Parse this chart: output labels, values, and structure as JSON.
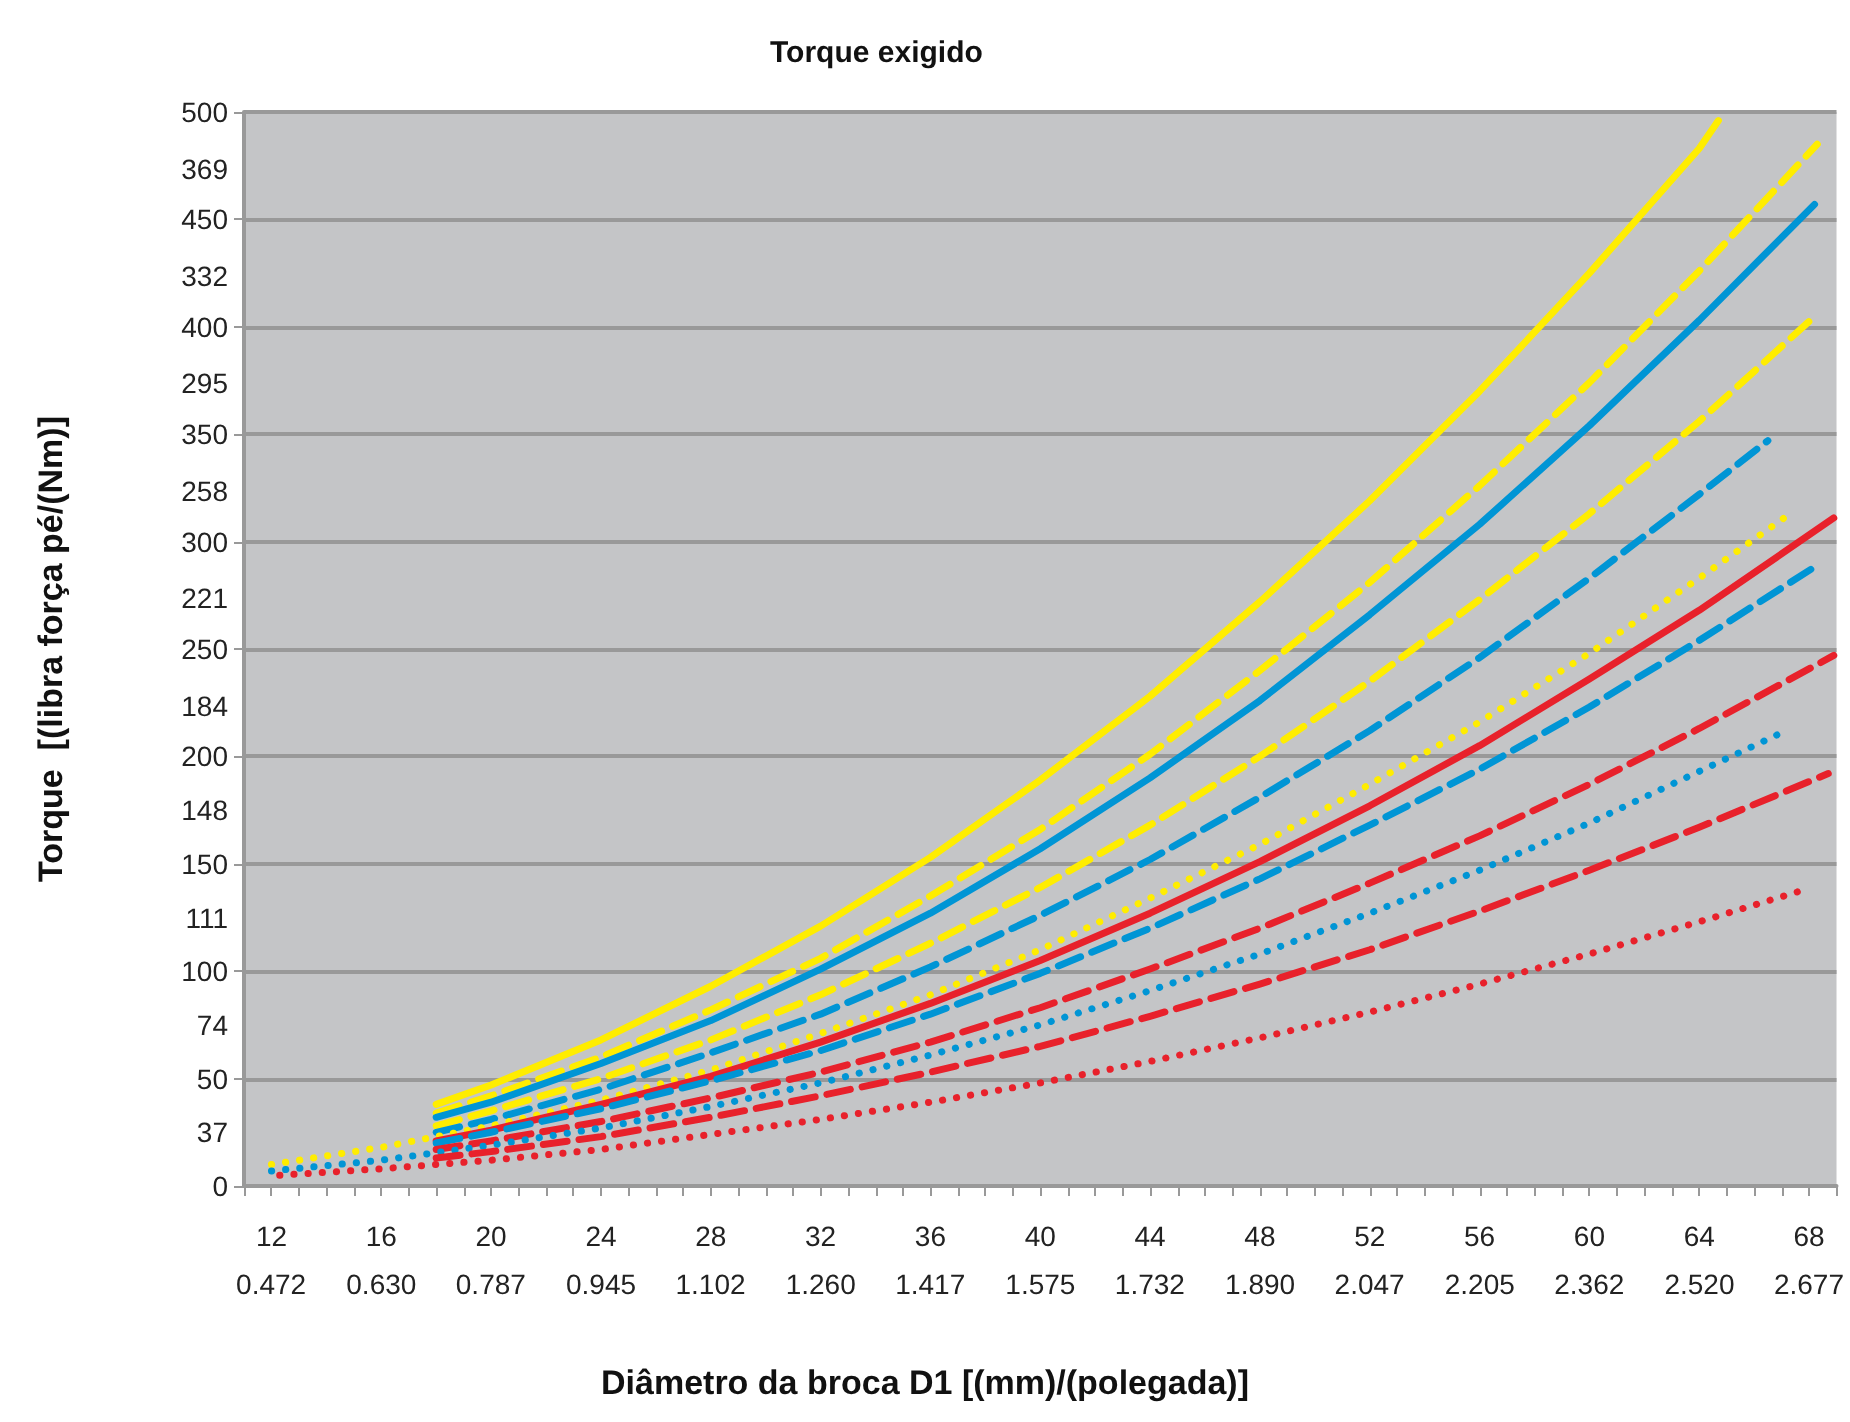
{
  "chart_data": {
    "type": "line",
    "title": "Torque exigido",
    "xlabel": "Diâmetro da broca D1 [(mm)/(polegada)]",
    "y2label": "Torque  [(libra força pé/(Nm)]",
    "xlim": [
      11,
      69
    ],
    "xticks": [
      {
        "value": 11,
        "label": null
      },
      {
        "value": 12,
        "label": "12"
      },
      {
        "value": 13,
        "label": null
      },
      {
        "value": 14,
        "label": null
      },
      {
        "value": 15,
        "label": null
      },
      {
        "value": 16,
        "label": "16"
      },
      {
        "value": 17,
        "label": null
      },
      {
        "value": 18,
        "label": null
      },
      {
        "value": 19,
        "label": null
      },
      {
        "value": 20,
        "label": "20"
      },
      {
        "value": 21,
        "label": null
      },
      {
        "value": 22,
        "label": null
      },
      {
        "value": 23,
        "label": null
      },
      {
        "value": 24,
        "label": "24"
      },
      {
        "value": 25,
        "label": null
      },
      {
        "value": 26,
        "label": null
      },
      {
        "value": 27,
        "label": null
      },
      {
        "value": 28,
        "label": "28"
      },
      {
        "value": 29,
        "label": null
      },
      {
        "value": 30,
        "label": null
      },
      {
        "value": 31,
        "label": null
      },
      {
        "value": 32,
        "label": "32"
      },
      {
        "value": 33,
        "label": null
      },
      {
        "value": 34,
        "label": null
      },
      {
        "value": 35,
        "label": null
      },
      {
        "value": 36,
        "label": "36"
      },
      {
        "value": 37,
        "label": null
      },
      {
        "value": 38,
        "label": null
      },
      {
        "value": 39,
        "label": null
      },
      {
        "value": 40,
        "label": "40"
      },
      {
        "value": 41,
        "label": null
      },
      {
        "value": 42,
        "label": null
      },
      {
        "value": 43,
        "label": null
      },
      {
        "value": 44,
        "label": "44"
      },
      {
        "value": 45,
        "label": null
      },
      {
        "value": 46,
        "label": null
      },
      {
        "value": 47,
        "label": null
      },
      {
        "value": 48,
        "label": "48"
      },
      {
        "value": 49,
        "label": null
      },
      {
        "value": 50,
        "label": null
      },
      {
        "value": 51,
        "label": null
      },
      {
        "value": 52,
        "label": "52"
      },
      {
        "value": 53,
        "label": null
      },
      {
        "value": 54,
        "label": null
      },
      {
        "value": 55,
        "label": null
      },
      {
        "value": 56,
        "label": "56"
      },
      {
        "value": 57,
        "label": null
      },
      {
        "value": 58,
        "label": null
      },
      {
        "value": 59,
        "label": null
      },
      {
        "value": 60,
        "label": "60"
      },
      {
        "value": 61,
        "label": null
      },
      {
        "value": 62,
        "label": null
      },
      {
        "value": 63,
        "label": null
      },
      {
        "value": 64,
        "label": "64"
      },
      {
        "value": 65,
        "label": null
      },
      {
        "value": 66,
        "label": null
      },
      {
        "value": 67,
        "label": null
      },
      {
        "value": 68,
        "label": "68"
      },
      {
        "value": 69,
        "label": null
      }
    ],
    "x2lim": [
      0.4331,
      2.7165
    ],
    "x2ticks": [
      0.472,
      {
        "value": 0.63,
        "label": "0.630"
      },
      0.787,
      0.945,
      1.102,
      {
        "value": 1.26,
        "label": "1.260"
      },
      1.417,
      1.575,
      1.732,
      {
        "value": 1.89,
        "label": "1.890"
      },
      2.047,
      2.205,
      2.362,
      {
        "value": 2.52,
        "label": "2.520"
      },
      2.677
    ],
    "ylim": [
      0,
      500
    ],
    "yticks": [
      0,
      50,
      100,
      150,
      200,
      250,
      300,
      350,
      400,
      450,
      500
    ],
    "y2lim": [
      18.5,
      388.5
    ],
    "y2ticks": [
      37,
      74,
      111,
      148,
      184,
      221,
      258,
      295,
      332,
      369
    ],
    "grid": "y",
    "marker": "none",
    "series": [
      {
        "color": "#ffed00",
        "line_style": "solid",
        "x": [
          18,
          20,
          24,
          28,
          32,
          36,
          40,
          44,
          48,
          52,
          56,
          60,
          64,
          64.7
        ],
        "values": [
          38,
          47,
          68,
          93,
          121,
          153,
          189,
          228,
          272,
          319,
          370,
          425,
          483,
          496
        ]
      },
      {
        "color": "#ffed00",
        "line_style": "dashed",
        "x": [
          18,
          20,
          24,
          28,
          32,
          36,
          40,
          44,
          48,
          52,
          56,
          60,
          64,
          68.3
        ],
        "values": [
          34,
          42,
          60,
          82,
          106,
          135,
          166,
          201,
          240,
          281,
          326,
          374,
          426,
          485
        ]
      },
      {
        "color": "#0095d5",
        "line_style": "solid",
        "x": [
          18,
          20,
          24,
          28,
          32,
          36,
          40,
          44,
          48,
          52,
          56,
          60,
          64,
          68.2
        ],
        "values": [
          32,
          39,
          57,
          77,
          101,
          127,
          157,
          190,
          226,
          266,
          308,
          354,
          403,
          457
        ]
      },
      {
        "color": "#ffed00",
        "line_style": "dashed",
        "x": [
          18,
          20,
          24,
          28,
          32,
          36,
          40,
          44,
          48,
          52,
          56,
          60,
          64,
          68.3
        ],
        "values": [
          28,
          35,
          50,
          68,
          89,
          113,
          139,
          168,
          200,
          235,
          273,
          313,
          356,
          406
        ]
      },
      {
        "color": "#0095d5",
        "line_style": "dashed",
        "x": [
          18,
          20,
          24,
          28,
          32,
          36,
          40,
          44,
          48,
          52,
          56,
          60,
          64,
          66.5
        ],
        "values": [
          25,
          31,
          45,
          62,
          80,
          102,
          126,
          152,
          181,
          212,
          246,
          283,
          322,
          347
        ]
      },
      {
        "color": "#ffed00",
        "line_style": "dotted",
        "x": [
          12,
          16,
          20,
          24,
          28,
          32,
          36,
          40,
          44,
          48,
          52,
          56,
          60,
          64,
          67.2
        ],
        "values": [
          10,
          18,
          28,
          40,
          54,
          71,
          89,
          110,
          134,
          159,
          187,
          216,
          248,
          283,
          312
        ]
      },
      {
        "color": "#e8212b",
        "line_style": "solid",
        "x": [
          18,
          20,
          24,
          28,
          32,
          36,
          40,
          44,
          48,
          52,
          56,
          60,
          64,
          68.9
        ],
        "values": [
          21,
          26,
          38,
          51,
          67,
          85,
          105,
          127,
          151,
          177,
          205,
          236,
          268,
          311
        ]
      },
      {
        "color": "#0095d5",
        "line_style": "dashed",
        "x": [
          18,
          20,
          24,
          28,
          32,
          36,
          40,
          44,
          48,
          52,
          56,
          60,
          64,
          68.3
        ],
        "values": [
          20,
          25,
          36,
          49,
          63,
          80,
          99,
          120,
          143,
          168,
          194,
          223,
          254,
          289
        ]
      },
      {
        "color": "#e8212b",
        "line_style": "dashed",
        "x": [
          18,
          20,
          24,
          28,
          32,
          36,
          40,
          44,
          48,
          52,
          56,
          60,
          64,
          68.9
        ],
        "values": [
          17,
          21,
          30,
          41,
          53,
          67,
          83,
          101,
          120,
          141,
          163,
          187,
          213,
          247
        ]
      },
      {
        "color": "#0095d5",
        "line_style": "dotted",
        "x": [
          12,
          16,
          20,
          24,
          28,
          32,
          36,
          40,
          44,
          48,
          52,
          56,
          60,
          64,
          67
        ],
        "values": [
          7,
          12,
          19,
          27,
          37,
          48,
          61,
          75,
          91,
          108,
          127,
          147,
          169,
          193,
          211
        ]
      },
      {
        "color": "#e8212b",
        "line_style": "dashed",
        "x": [
          18,
          20,
          24,
          28,
          32,
          36,
          40,
          44,
          48,
          52,
          56,
          60,
          64,
          68.7
        ],
        "values": [
          13,
          16,
          23,
          32,
          42,
          53,
          65,
          79,
          94,
          110,
          128,
          147,
          167,
          192
        ]
      },
      {
        "color": "#e8212b",
        "line_style": "dotted",
        "x": [
          12.3,
          16,
          20,
          24,
          28,
          32,
          36,
          40,
          44,
          48,
          52,
          56,
          60,
          64,
          67.6
        ],
        "values": [
          5,
          8,
          12,
          17,
          24,
          31,
          39,
          48,
          58,
          69,
          81,
          94,
          108,
          123,
          137
        ]
      }
    ]
  }
}
